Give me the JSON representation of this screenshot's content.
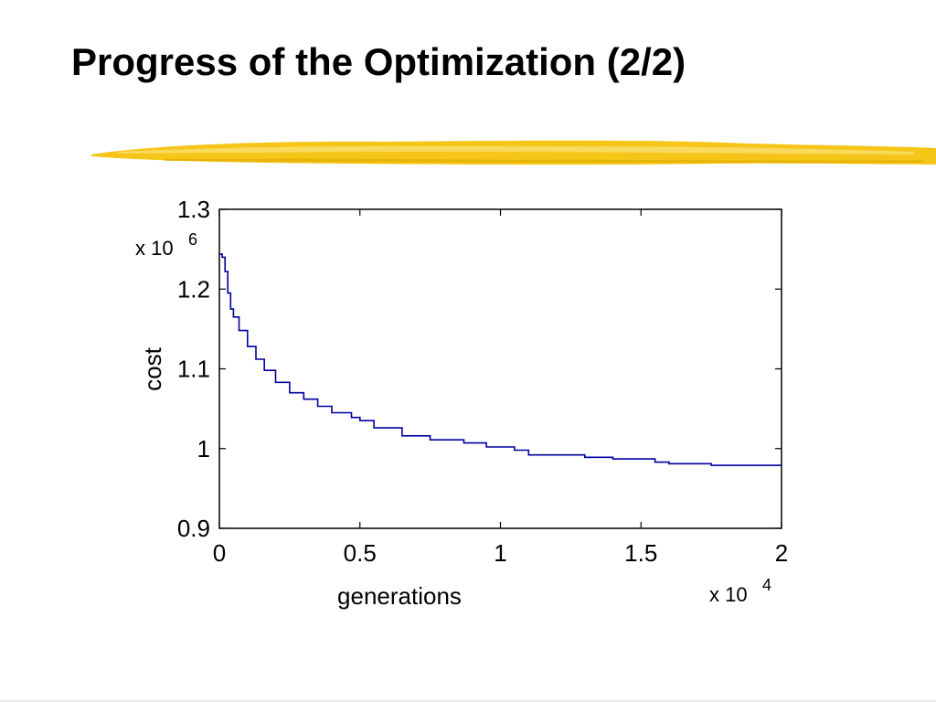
{
  "slide": {
    "title": "Progress of the Optimization (2/2)"
  },
  "colors": {
    "accent_stroke": "#f5c518",
    "series_line": "#0000a0"
  },
  "chart_data": {
    "type": "line",
    "title": "",
    "xlabel": "generations",
    "ylabel": "cost",
    "x_multiplier_label": "x 10",
    "x_multiplier_exp": "4",
    "y_multiplier_label": "x 10",
    "y_multiplier_exp": "6",
    "xlim": [
      0,
      2
    ],
    "ylim": [
      0.9,
      1.3
    ],
    "xticks": [
      {
        "value": 0,
        "label": "0"
      },
      {
        "value": 0.5,
        "label": "0.5"
      },
      {
        "value": 1,
        "label": "1"
      },
      {
        "value": 1.5,
        "label": "1.5"
      },
      {
        "value": 2,
        "label": "2"
      }
    ],
    "yticks": [
      {
        "value": 0.9,
        "label": "0.9"
      },
      {
        "value": 1.0,
        "label": "1"
      },
      {
        "value": 1.1,
        "label": "1.1"
      },
      {
        "value": 1.2,
        "label": "1.2"
      },
      {
        "value": 1.3,
        "label": "1.3"
      }
    ],
    "grid": false,
    "series": [
      {
        "x": [
          0,
          0.01,
          0.02,
          0.03,
          0.04,
          0.05,
          0.07,
          0.1,
          0.13,
          0.16,
          0.2,
          0.25,
          0.3,
          0.35,
          0.4,
          0.47,
          0.5,
          0.55,
          0.65,
          0.75,
          0.87,
          0.95,
          1.05,
          1.1,
          1.3,
          1.4,
          1.55,
          1.6,
          1.75,
          2.0
        ],
        "y": [
          1.244,
          1.24,
          1.222,
          1.195,
          1.175,
          1.165,
          1.148,
          1.128,
          1.112,
          1.098,
          1.083,
          1.07,
          1.062,
          1.053,
          1.045,
          1.039,
          1.035,
          1.026,
          1.016,
          1.011,
          1.007,
          1.002,
          0.998,
          0.992,
          0.989,
          0.987,
          0.983,
          0.981,
          0.979,
          0.979
        ]
      }
    ]
  }
}
